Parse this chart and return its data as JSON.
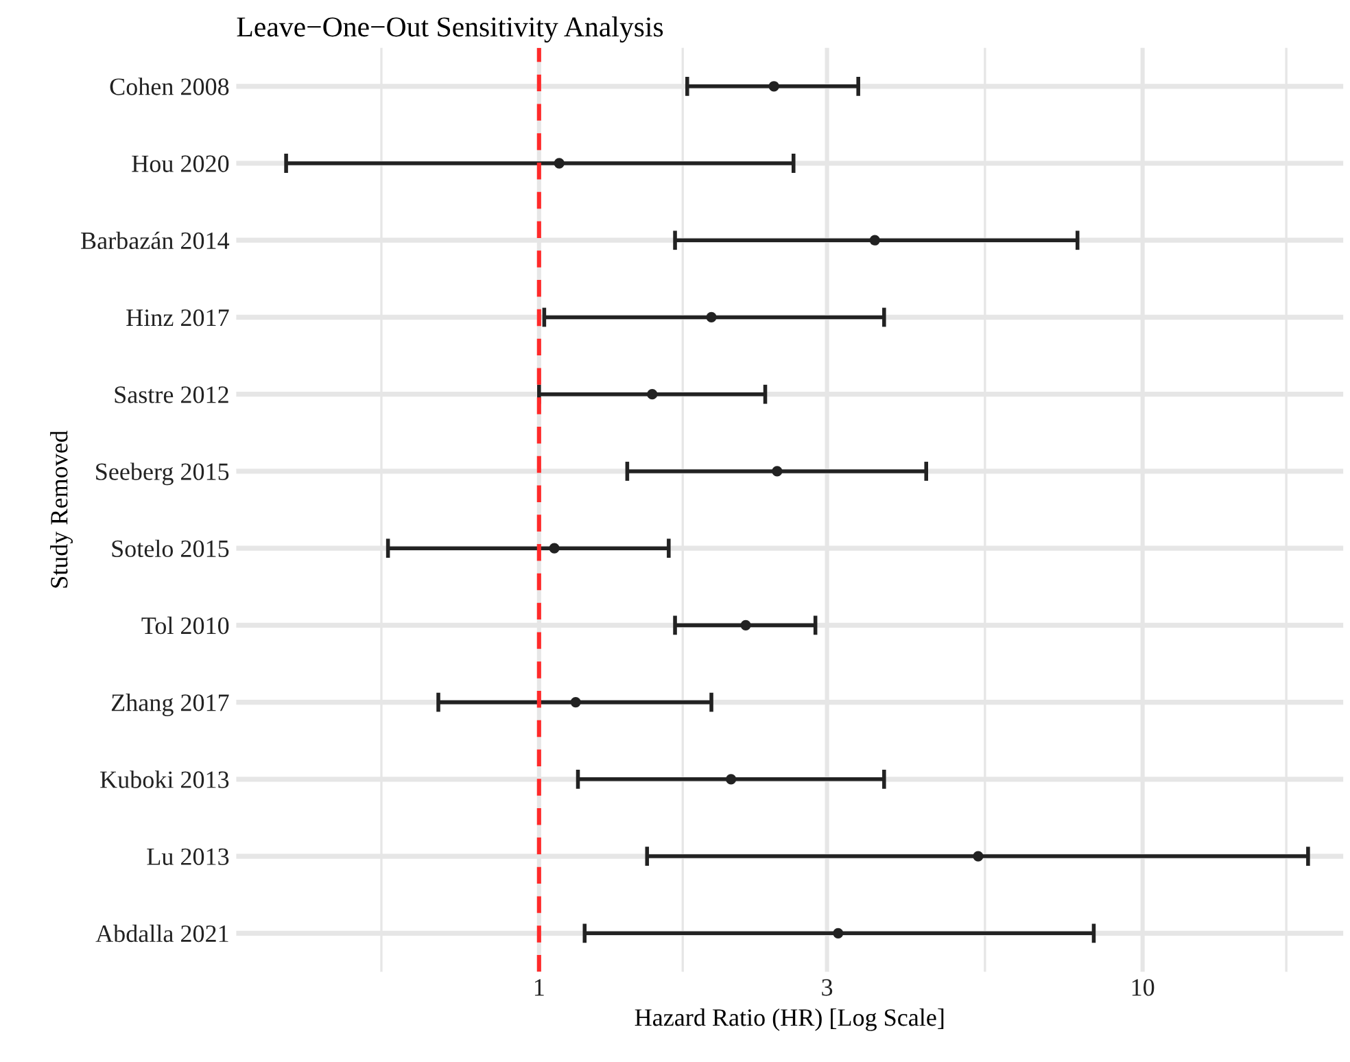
{
  "chart_data": {
    "type": "scatter",
    "orientation": "horizontal",
    "title": "Leave−One−Out Sensitivity Analysis",
    "xlabel": "Hazard Ratio (HR) [Log Scale]",
    "ylabel": "Study Removed",
    "categories": [
      "Cohen 2008",
      "Hou 2020",
      "Barbazán 2014",
      "Hinz 2017",
      "Sastre 2012",
      "Seeberg 2015",
      "Sotelo 2015",
      "Tol 2010",
      "Zhang 2017",
      "Kuboki 2013",
      "Lu 2013",
      "Abdalla 2021"
    ],
    "values": [
      2.45,
      1.08,
      3.6,
      1.93,
      1.54,
      2.48,
      1.06,
      2.2,
      1.15,
      2.08,
      5.34,
      3.13
    ],
    "errors": [
      [
        1.76,
        3.38
      ],
      [
        0.381,
        2.64
      ],
      [
        1.68,
        7.8
      ],
      [
        1.02,
        3.73
      ],
      [
        1.0,
        2.37
      ],
      [
        1.4,
        4.38
      ],
      [
        0.562,
        1.64
      ],
      [
        1.68,
        2.87
      ],
      [
        0.681,
        1.93
      ],
      [
        1.16,
        3.73
      ],
      [
        1.51,
        18.8
      ],
      [
        1.19,
        8.3
      ]
    ],
    "color": "#222222",
    "marker": "circle",
    "log": "x",
    "xlim": [
      0.315,
      21.5
    ],
    "xticks": [
      {
        "value": 0.548,
        "label": null
      },
      1,
      {
        "value": 1.73,
        "label": null
      },
      3,
      {
        "value": 5.48,
        "label": null
      },
      10,
      {
        "value": 17.3,
        "label": null
      }
    ],
    "ref_lines": [
      {
        "axis": "x",
        "value": 1,
        "label": null,
        "color": "#ff2a2a",
        "line_style": "dashed"
      }
    ],
    "grid": true,
    "legend": false
  }
}
